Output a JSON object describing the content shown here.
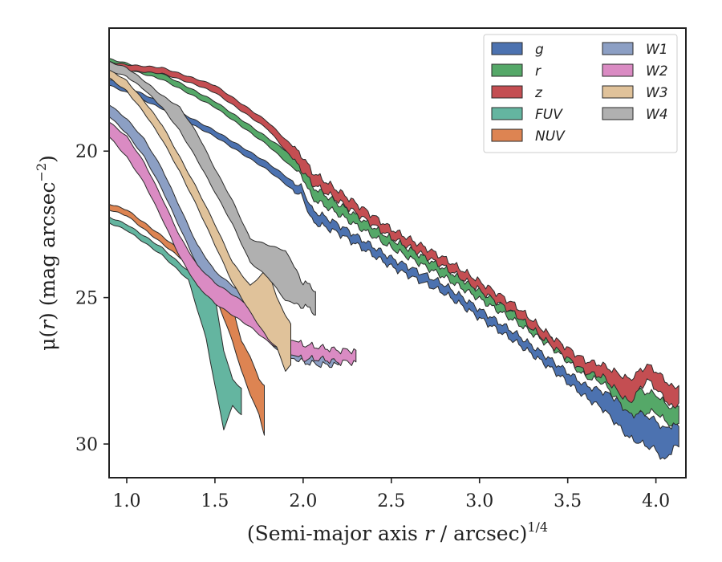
{
  "chart_data": {
    "type": "area",
    "title": "",
    "xlabel": {
      "main": "(Semi-major axis ",
      "var": "r",
      "rest": " / arcsec)",
      "sup": "1/4"
    },
    "ylabel": {
      "main": "μ(",
      "var": "r",
      "rest": ") (mag arcsec",
      "sup": "−2",
      "end": ")"
    },
    "xlim": [
      0.9,
      4.17
    ],
    "ylim": [
      31.15,
      15.8
    ],
    "y_inverted": true,
    "xticks": [
      {
        "value": 1.0,
        "label": "1.0"
      },
      {
        "value": 1.5,
        "label": "1.5"
      },
      {
        "value": 2.0,
        "label": "2.0"
      },
      {
        "value": 2.5,
        "label": "2.5"
      },
      {
        "value": 3.0,
        "label": "3.0"
      },
      {
        "value": 3.5,
        "label": "3.5"
      },
      {
        "value": 4.0,
        "label": "4.0"
      }
    ],
    "yticks": [
      {
        "value": 20,
        "label": "20"
      },
      {
        "value": 25,
        "label": "25"
      },
      {
        "value": 30,
        "label": "30"
      }
    ],
    "grid": false,
    "legend": {
      "position": "top-right",
      "columns": 2
    },
    "series": [
      {
        "name": "g",
        "color": "#4c72b0",
        "points": [
          [
            0.9,
            17.55,
            17.75
          ],
          [
            1.0,
            17.8,
            18.0
          ],
          [
            1.2,
            18.35,
            18.55
          ],
          [
            1.5,
            19.3,
            19.5
          ],
          [
            1.8,
            20.4,
            20.65
          ],
          [
            2.0,
            21.3,
            21.6
          ],
          [
            2.05,
            22.0,
            22.4
          ],
          [
            2.2,
            22.5,
            22.8
          ],
          [
            2.5,
            23.65,
            23.95
          ],
          [
            2.8,
            24.55,
            24.85
          ],
          [
            3.0,
            25.4,
            25.7
          ],
          [
            3.2,
            26.2,
            26.5
          ],
          [
            3.4,
            27.1,
            27.4
          ],
          [
            3.6,
            28.0,
            28.4
          ],
          [
            3.7,
            28.2,
            28.8
          ],
          [
            3.85,
            28.7,
            29.8
          ],
          [
            4.0,
            29.2,
            30.2
          ],
          [
            4.05,
            29.5,
            30.6
          ],
          [
            4.1,
            29.3,
            30.1
          ],
          [
            4.13,
            29.4,
            30.1
          ]
        ]
      },
      {
        "name": "r",
        "color": "#55a868",
        "points": [
          [
            0.9,
            16.85,
            17.05
          ],
          [
            1.0,
            17.0,
            17.2
          ],
          [
            1.2,
            17.35,
            17.55
          ],
          [
            1.5,
            18.3,
            18.5
          ],
          [
            1.8,
            19.55,
            19.8
          ],
          [
            2.0,
            20.4,
            20.9
          ],
          [
            2.05,
            21.2,
            21.6
          ],
          [
            2.2,
            21.8,
            22.15
          ],
          [
            2.5,
            23.0,
            23.3
          ],
          [
            2.8,
            24.0,
            24.3
          ],
          [
            3.0,
            24.75,
            25.05
          ],
          [
            3.2,
            25.5,
            25.8
          ],
          [
            3.4,
            26.35,
            26.65
          ],
          [
            3.6,
            27.3,
            27.7
          ],
          [
            3.7,
            27.5,
            27.9
          ],
          [
            3.85,
            28.1,
            29.0
          ],
          [
            4.0,
            28.3,
            28.9
          ],
          [
            4.05,
            28.6,
            29.2
          ],
          [
            4.1,
            28.8,
            29.4
          ],
          [
            4.13,
            28.7,
            29.3
          ]
        ]
      },
      {
        "name": "z",
        "color": "#c44e52",
        "points": [
          [
            0.9,
            16.95,
            17.15
          ],
          [
            1.0,
            17.05,
            17.25
          ],
          [
            1.2,
            17.15,
            17.35
          ],
          [
            1.4,
            17.55,
            17.75
          ],
          [
            1.5,
            17.75,
            18.0
          ],
          [
            1.8,
            19.0,
            19.25
          ],
          [
            2.0,
            20.2,
            20.7
          ],
          [
            2.05,
            20.7,
            21.1
          ],
          [
            2.2,
            21.35,
            21.7
          ],
          [
            2.5,
            22.65,
            22.95
          ],
          [
            2.8,
            23.65,
            23.95
          ],
          [
            3.0,
            24.45,
            24.75
          ],
          [
            3.2,
            25.25,
            25.55
          ],
          [
            3.4,
            26.3,
            26.6
          ],
          [
            3.6,
            27.15,
            27.55
          ],
          [
            3.7,
            27.3,
            27.7
          ],
          [
            3.85,
            27.8,
            28.6
          ],
          [
            3.95,
            27.3,
            27.8
          ],
          [
            4.0,
            27.5,
            28.1
          ],
          [
            4.1,
            28.1,
            28.8
          ],
          [
            4.13,
            28.0,
            28.6
          ]
        ]
      },
      {
        "name": "FUV",
        "color": "#64b5a0",
        "points": [
          [
            0.9,
            22.25,
            22.45
          ],
          [
            1.0,
            22.5,
            22.7
          ],
          [
            1.2,
            23.3,
            23.55
          ],
          [
            1.35,
            24.1,
            24.4
          ],
          [
            1.45,
            24.6,
            26.4
          ],
          [
            1.5,
            25.0,
            28.0
          ],
          [
            1.55,
            26.8,
            29.5
          ],
          [
            1.6,
            27.8,
            28.7
          ],
          [
            1.65,
            28.1,
            29.0
          ]
        ]
      },
      {
        "name": "NUV",
        "color": "#dd8452",
        "points": [
          [
            0.9,
            21.8,
            22.0
          ],
          [
            1.0,
            22.0,
            22.2
          ],
          [
            1.2,
            22.9,
            23.15
          ],
          [
            1.4,
            23.85,
            24.1
          ],
          [
            1.5,
            24.5,
            24.9
          ],
          [
            1.6,
            25.3,
            26.5
          ],
          [
            1.65,
            26.5,
            27.5
          ],
          [
            1.7,
            27.0,
            28.3
          ],
          [
            1.75,
            27.8,
            29.0
          ],
          [
            1.78,
            28.0,
            29.7
          ]
        ]
      },
      {
        "name": "W1",
        "color": "#8c9fc4",
        "points": [
          [
            0.9,
            18.4,
            18.8
          ],
          [
            1.0,
            18.9,
            19.4
          ],
          [
            1.1,
            19.6,
            20.2
          ],
          [
            1.2,
            20.6,
            21.3
          ],
          [
            1.3,
            21.9,
            22.6
          ],
          [
            1.4,
            23.2,
            23.9
          ],
          [
            1.5,
            24.1,
            24.7
          ],
          [
            1.6,
            24.6,
            25.2
          ],
          [
            1.7,
            25.0,
            25.6
          ],
          [
            1.8,
            25.8,
            26.5
          ],
          [
            1.9,
            26.5,
            27.0
          ],
          [
            2.0,
            26.8,
            27.2
          ],
          [
            2.1,
            26.8,
            27.3
          ],
          [
            2.2,
            27.0,
            27.3
          ]
        ]
      },
      {
        "name": "W2",
        "color": "#da8bc3",
        "points": [
          [
            0.9,
            19.0,
            19.5
          ],
          [
            1.0,
            19.5,
            20.2
          ],
          [
            1.1,
            20.4,
            21.1
          ],
          [
            1.2,
            21.6,
            22.3
          ],
          [
            1.3,
            22.9,
            23.6
          ],
          [
            1.4,
            23.9,
            24.6
          ],
          [
            1.5,
            24.5,
            25.2
          ],
          [
            1.6,
            24.9,
            25.6
          ],
          [
            1.7,
            25.3,
            26.0
          ],
          [
            1.8,
            25.9,
            26.5
          ],
          [
            1.9,
            26.4,
            26.9
          ],
          [
            2.0,
            26.6,
            27.1
          ],
          [
            2.1,
            26.7,
            27.1
          ],
          [
            2.2,
            26.8,
            27.2
          ],
          [
            2.3,
            26.8,
            27.2
          ]
        ]
      },
      {
        "name": "W3",
        "color": "#e0c29a",
        "points": [
          [
            0.9,
            17.2,
            17.5
          ],
          [
            1.0,
            17.6,
            17.95
          ],
          [
            1.1,
            18.3,
            18.7
          ],
          [
            1.2,
            19.1,
            19.6
          ],
          [
            1.3,
            20.2,
            20.7
          ],
          [
            1.4,
            21.3,
            21.9
          ],
          [
            1.5,
            22.5,
            23.2
          ],
          [
            1.6,
            23.8,
            24.5
          ],
          [
            1.7,
            24.6,
            25.5
          ],
          [
            1.8,
            24.0,
            26.4
          ],
          [
            1.85,
            25.0,
            26.7
          ],
          [
            1.9,
            25.6,
            27.5
          ],
          [
            1.93,
            25.9,
            27.3
          ]
        ]
      },
      {
        "name": "W4",
        "color": "#b0b0b0",
        "points": [
          [
            0.9,
            16.95,
            17.25
          ],
          [
            1.0,
            17.15,
            17.45
          ],
          [
            1.1,
            17.6,
            17.9
          ],
          [
            1.2,
            18.1,
            18.5
          ],
          [
            1.3,
            18.5,
            19.3
          ],
          [
            1.4,
            19.4,
            20.3
          ],
          [
            1.5,
            20.6,
            21.4
          ],
          [
            1.6,
            21.7,
            22.5
          ],
          [
            1.7,
            23.0,
            23.8
          ],
          [
            1.8,
            23.2,
            24.3
          ],
          [
            1.9,
            23.4,
            25.1
          ],
          [
            2.0,
            24.5,
            25.3
          ],
          [
            2.05,
            24.6,
            25.4
          ],
          [
            2.07,
            24.8,
            25.6
          ]
        ]
      }
    ]
  }
}
